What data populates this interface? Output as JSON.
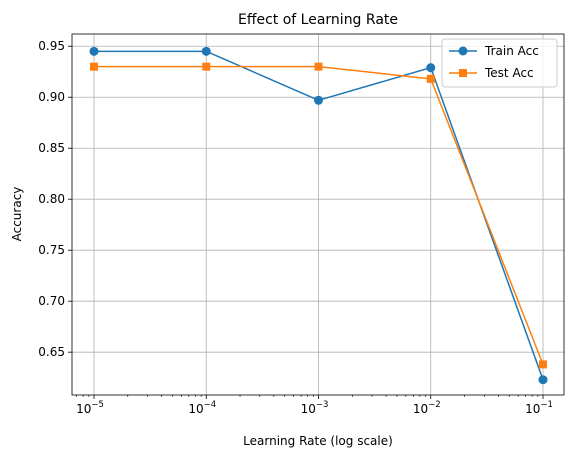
{
  "chart_data": {
    "type": "line",
    "title": "Effect of Learning Rate",
    "xlabel": "Learning Rate (log scale)",
    "ylabel": "Accuracy",
    "xscale": "log",
    "x": [
      1e-05,
      0.0001,
      0.001,
      0.01,
      0.1
    ],
    "x_tick_labels": [
      {
        "base": "10",
        "exp": "−5"
      },
      {
        "base": "10",
        "exp": "−4"
      },
      {
        "base": "10",
        "exp": "−3"
      },
      {
        "base": "10",
        "exp": "−2"
      },
      {
        "base": "10",
        "exp": "−1"
      }
    ],
    "y_ticks": [
      0.65,
      0.7,
      0.75,
      0.8,
      0.85,
      0.9,
      0.95
    ],
    "y_tick_labels": [
      "0.65",
      "0.70",
      "0.75",
      "0.80",
      "0.85",
      "0.90",
      "0.95"
    ],
    "ylim": [
      0.608,
      0.962
    ],
    "grid": true,
    "legend_position": "top-right",
    "series": [
      {
        "name": "Train Acc",
        "color": "#1f77b4",
        "marker": "circle",
        "values": [
          0.945,
          0.945,
          0.897,
          0.929,
          0.623
        ]
      },
      {
        "name": "Test Acc",
        "color": "#ff7f0e",
        "marker": "square",
        "values": [
          0.93,
          0.93,
          0.93,
          0.918,
          0.638
        ]
      }
    ]
  }
}
